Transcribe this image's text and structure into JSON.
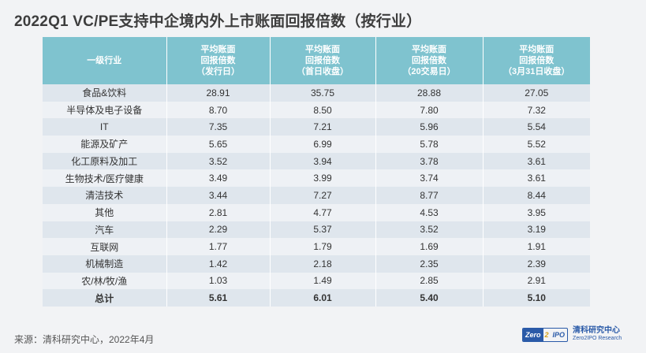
{
  "title": "2022Q1 VC/PE支持中企境内外上市账面回报倍数（按行业）",
  "table": {
    "headers": [
      {
        "lines": [
          "一级行业"
        ]
      },
      {
        "lines": [
          "平均账面",
          "回报倍数",
          "（发行日）"
        ]
      },
      {
        "lines": [
          "平均账面",
          "回报倍数",
          "（首日收盘）"
        ]
      },
      {
        "lines": [
          "平均账面",
          "回报倍数",
          "（20交易日）"
        ]
      },
      {
        "lines": [
          "平均账面",
          "回报倍数",
          "（3月31日收盘）"
        ]
      }
    ],
    "rows": [
      [
        "食品&饮料",
        "28.91",
        "35.75",
        "28.88",
        "27.05"
      ],
      [
        "半导体及电子设备",
        "8.70",
        "8.50",
        "7.80",
        "7.32"
      ],
      [
        "IT",
        "7.35",
        "7.21",
        "5.96",
        "5.54"
      ],
      [
        "能源及矿产",
        "5.65",
        "6.99",
        "5.78",
        "5.52"
      ],
      [
        "化工原料及加工",
        "3.52",
        "3.94",
        "3.78",
        "3.61"
      ],
      [
        "生物技术/医疗健康",
        "3.49",
        "3.99",
        "3.74",
        "3.61"
      ],
      [
        "清洁技术",
        "3.44",
        "7.27",
        "8.77",
        "8.44"
      ],
      [
        "其他",
        "2.81",
        "4.77",
        "4.53",
        "3.95"
      ],
      [
        "汽车",
        "2.29",
        "5.37",
        "3.52",
        "3.19"
      ],
      [
        "互联网",
        "1.77",
        "1.79",
        "1.69",
        "1.91"
      ],
      [
        "机械制造",
        "1.42",
        "2.18",
        "2.35",
        "2.39"
      ],
      [
        "农/林/牧/渔",
        "1.03",
        "1.49",
        "2.85",
        "2.91"
      ]
    ],
    "total": [
      "总计",
      "5.61",
      "6.01",
      "5.40",
      "5.10"
    ]
  },
  "source": "来源：清科研究中心，2022年4月",
  "logo": {
    "badge_part1": "Zero",
    "badge_part2": "2",
    "badge_part3": "IPO",
    "name_cn": "清科研究中心",
    "name_en": "Zero2IPO Research"
  },
  "colors": {
    "header_bg": "#7fc3cf",
    "row_odd": "#dfe6ed",
    "row_even": "#eef1f5",
    "brand": "#2a5aa8"
  }
}
